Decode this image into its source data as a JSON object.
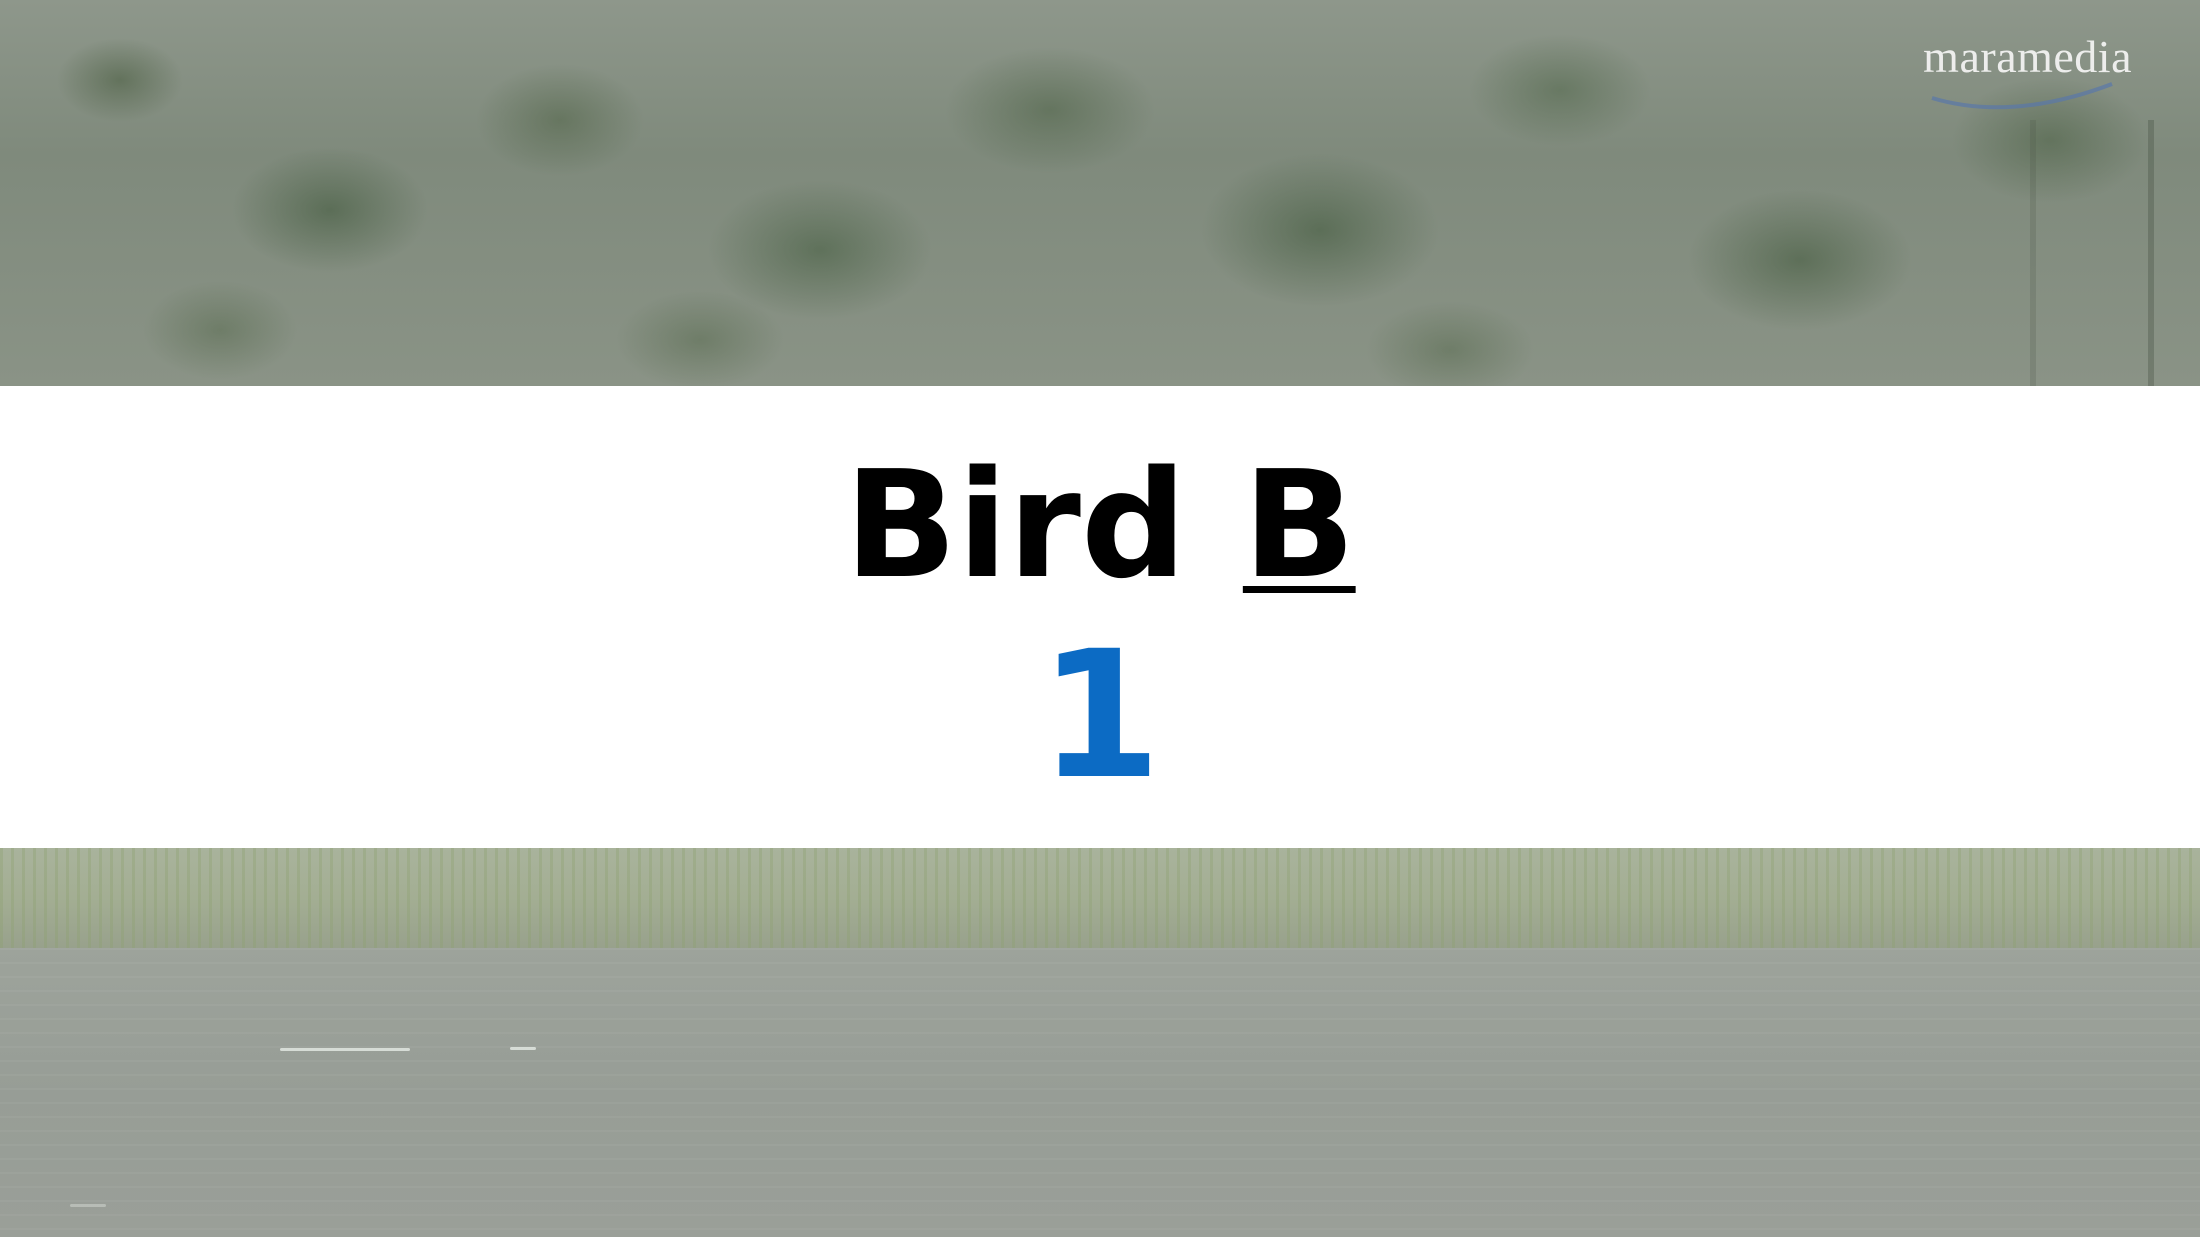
{
  "logo": {
    "text": "maramedia"
  },
  "slide": {
    "title_word": "Bird",
    "title_letter": "B",
    "number": "1"
  },
  "colors": {
    "number": "#0c6bc4",
    "title": "#000000",
    "banner": "#ffffff"
  }
}
